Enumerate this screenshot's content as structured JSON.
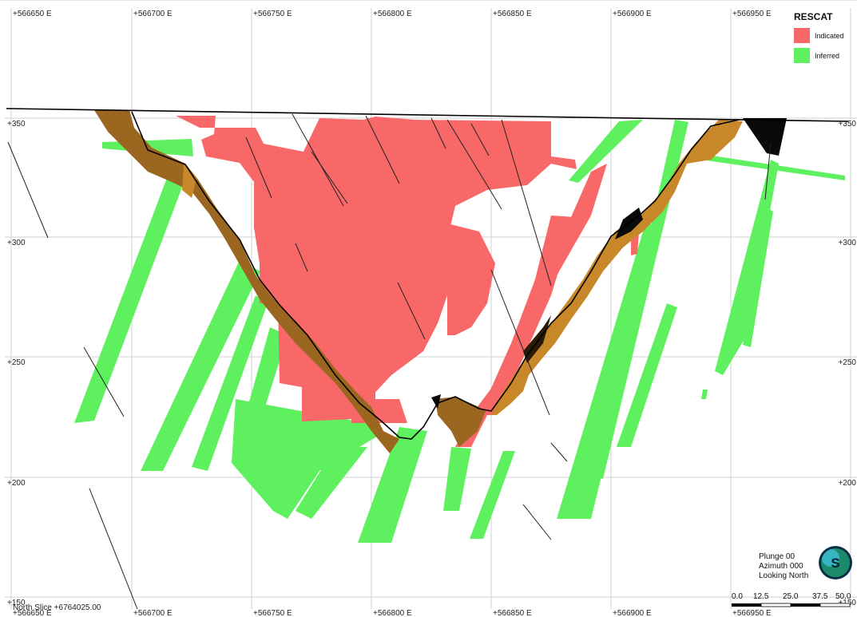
{
  "easting_labels": [
    "+566650 E",
    "+566700 E",
    "+566750 E",
    "+566800 E",
    "+566850 E",
    "+566900 E",
    "+566950 E"
  ],
  "rl_labels_left": [
    "+350",
    "+300",
    "+250",
    "+200",
    "+150"
  ],
  "rl_labels_right": [
    "+350",
    "+300",
    "+250",
    "+200",
    "+150"
  ],
  "legend": {
    "title": "RESCAT",
    "items": [
      {
        "label": "Indicated",
        "color": "#f86868"
      },
      {
        "label": "Inferred",
        "color": "#5ef05e"
      }
    ]
  },
  "orientation": {
    "plunge": "Plunge 00",
    "azimuth": "Azimuth 000",
    "looking": "Looking North",
    "logo_letter": "S"
  },
  "scale_bar": {
    "labels": [
      "0.0",
      "12.5",
      "25.0",
      "37.5",
      "50.0"
    ]
  },
  "section_label": "North Slice +6764025.00",
  "colors": {
    "indicated": "#f86868",
    "inferred": "#5ef05e",
    "pit_wall": "#9a6620"
  }
}
